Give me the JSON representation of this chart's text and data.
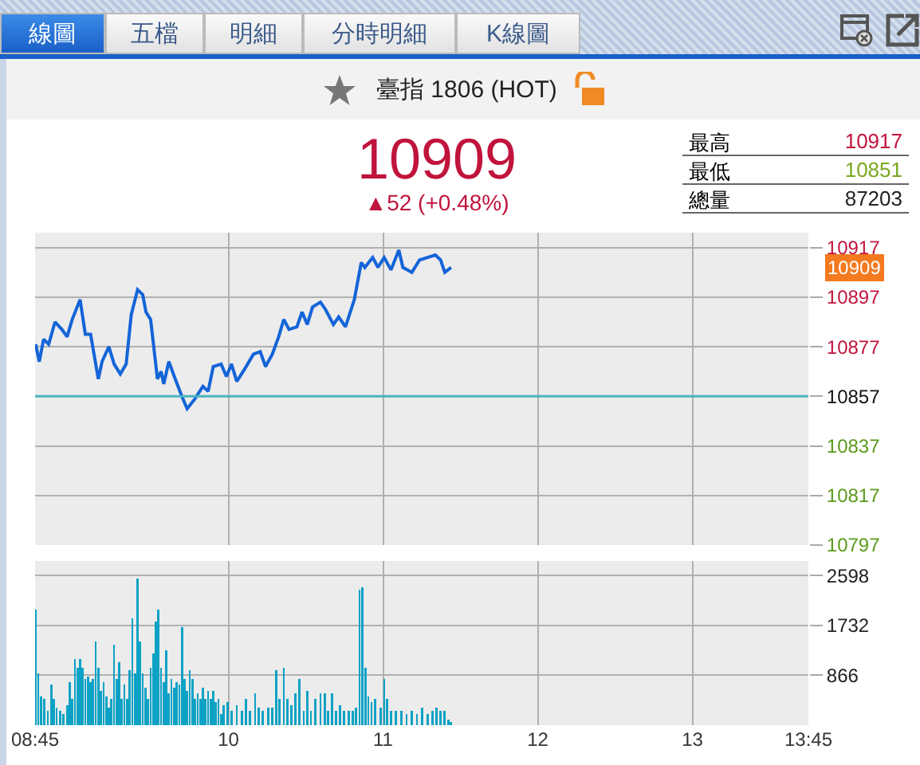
{
  "chart_data": [
    {
      "type": "other",
      "title": "臺指 1806 (HOT)",
      "annotations": [
        "線圖",
        "五檔",
        "明細",
        "分時明細",
        "K線圖",
        "10909",
        "▲52 (+0.48%)",
        "最高",
        "10917",
        "最低",
        "10851",
        "總量",
        "87203"
      ]
    },
    {
      "type": "line",
      "color": "#1464d8",
      "tick_labels": "y",
      "grid": true,
      "x": [
        8.754,
        8.777,
        8.805,
        8.838,
        8.879,
        8.923,
        8.957,
        8.99,
        9.041,
        9.075,
        9.109,
        9.159,
        9.183,
        9.227,
        9.261,
        9.301,
        9.339,
        9.372,
        9.413,
        9.446,
        9.467,
        9.497,
        9.541,
        9.565,
        9.582,
        9.615,
        9.656,
        9.699,
        9.733,
        9.784,
        9.835,
        9.869,
        9.902,
        9.953,
        9.987,
        10.02,
        10.054,
        10.105,
        10.162,
        10.206,
        10.24,
        10.284,
        10.325,
        10.358,
        10.392,
        10.443,
        10.476,
        10.51,
        10.544,
        10.595,
        10.628,
        10.679,
        10.713,
        10.757,
        10.814,
        10.859,
        10.882,
        10.933,
        10.967,
        11.007,
        11.051,
        11.102,
        11.128,
        11.186,
        11.236,
        11.287,
        11.338,
        11.372,
        11.399,
        11.44
      ],
      "values": [
        10878,
        10871,
        10880,
        10878,
        10887,
        10884,
        10881,
        10888,
        10896,
        10882,
        10882,
        10864,
        10871,
        10877,
        10870,
        10866,
        10870,
        10890,
        10900,
        10898,
        10891,
        10888,
        10864,
        10867,
        10862,
        10871,
        10864,
        10857,
        10852,
        10856,
        10861,
        10859,
        10869,
        10870,
        10865,
        10870,
        10863,
        10868,
        10874,
        10875,
        10869,
        10874,
        10881,
        10888,
        10884,
        10885,
        10891,
        10886,
        10893,
        10895,
        10892,
        10886,
        10889,
        10885,
        10896,
        10911,
        10909,
        10913,
        10909,
        10913,
        10908,
        10916,
        10909,
        10907,
        10912,
        10913,
        10914,
        10912,
        10907,
        10909
      ],
      "xlim": [
        8.75,
        13.75
      ],
      "xticks": [
        10,
        11,
        12,
        13
      ],
      "ylim": [
        10797,
        10923
      ],
      "yticks": [
        10797,
        10817,
        10837,
        10857,
        10877,
        10897,
        10917
      ],
      "ref_lines": [
        {
          "axis": "y",
          "value": 10857,
          "color": "#4ab5bf"
        }
      ],
      "annotations": [
        "10909"
      ]
    },
    {
      "type": "bar",
      "color": "#0da2c5",
      "grid": true,
      "x": [
        8.754,
        8.771,
        8.788,
        8.811,
        8.832,
        8.855,
        8.872,
        8.889,
        8.913,
        8.933,
        8.957,
        8.974,
        8.99,
        9.007,
        9.024,
        9.041,
        9.058,
        9.075,
        9.092,
        9.109,
        9.125,
        9.142,
        9.159,
        9.176,
        9.193,
        9.21,
        9.227,
        9.244,
        9.26,
        9.277,
        9.294,
        9.311,
        9.328,
        9.345,
        9.362,
        9.379,
        9.396,
        9.413,
        9.429,
        9.446,
        9.463,
        9.48,
        9.497,
        9.514,
        9.531,
        9.548,
        9.565,
        9.581,
        9.598,
        9.615,
        9.632,
        9.649,
        9.666,
        9.683,
        9.7,
        9.717,
        9.733,
        9.75,
        9.767,
        9.784,
        9.801,
        9.818,
        9.835,
        9.852,
        9.868,
        9.885,
        9.902,
        9.919,
        9.936,
        9.953,
        9.97,
        9.993,
        10.021,
        10.054,
        10.088,
        10.115,
        10.139,
        10.173,
        10.196,
        10.223,
        10.257,
        10.284,
        10.308,
        10.331,
        10.358,
        10.382,
        10.409,
        10.433,
        10.46,
        10.487,
        10.51,
        10.534,
        10.561,
        10.595,
        10.622,
        10.645,
        10.669,
        10.696,
        10.723,
        10.747,
        10.78,
        10.804,
        10.824,
        10.848,
        10.865,
        10.888,
        10.905,
        10.925,
        10.949,
        10.983,
        11.007,
        11.027,
        11.05,
        11.084,
        11.118,
        11.152,
        11.186,
        11.219,
        11.253,
        11.287,
        11.321,
        11.344,
        11.371,
        11.398,
        11.422,
        11.439
      ],
      "values": [
        2000,
        900,
        500,
        450,
        250,
        700,
        450,
        300,
        250,
        200,
        350,
        750,
        450,
        1150,
        1000,
        1150,
        1000,
        800,
        850,
        750,
        800,
        1450,
        1000,
        600,
        750,
        500,
        300,
        450,
        1400,
        800,
        1100,
        450,
        700,
        450,
        950,
        1850,
        900,
        2550,
        1450,
        900,
        650,
        450,
        1000,
        1250,
        1800,
        2000,
        1000,
        750,
        1300,
        550,
        800,
        650,
        750,
        700,
        1700,
        800,
        600,
        950,
        800,
        450,
        550,
        450,
        650,
        450,
        600,
        450,
        600,
        400,
        450,
        200,
        350,
        400,
        250,
        350,
        250,
        450,
        250,
        550,
        300,
        250,
        300,
        300,
        950,
        450,
        1000,
        450,
        350,
        550,
        800,
        250,
        600,
        250,
        450,
        550,
        550,
        250,
        550,
        250,
        350,
        250,
        250,
        250,
        300,
        2350,
        2400,
        1000,
        500,
        400,
        450,
        300,
        800,
        450,
        250,
        250,
        250,
        200,
        250,
        200,
        300,
        200,
        250,
        300,
        250,
        250,
        100,
        50
      ],
      "xlim": [
        8.75,
        13.75
      ],
      "xticks": [
        {
          "value": 8.75,
          "label": "08:45"
        },
        10,
        11,
        12,
        13,
        {
          "value": 13.75,
          "label": "13:45"
        }
      ],
      "ylim": [
        0,
        2850
      ],
      "yticks": [
        866,
        1732,
        2598
      ]
    }
  ]
}
